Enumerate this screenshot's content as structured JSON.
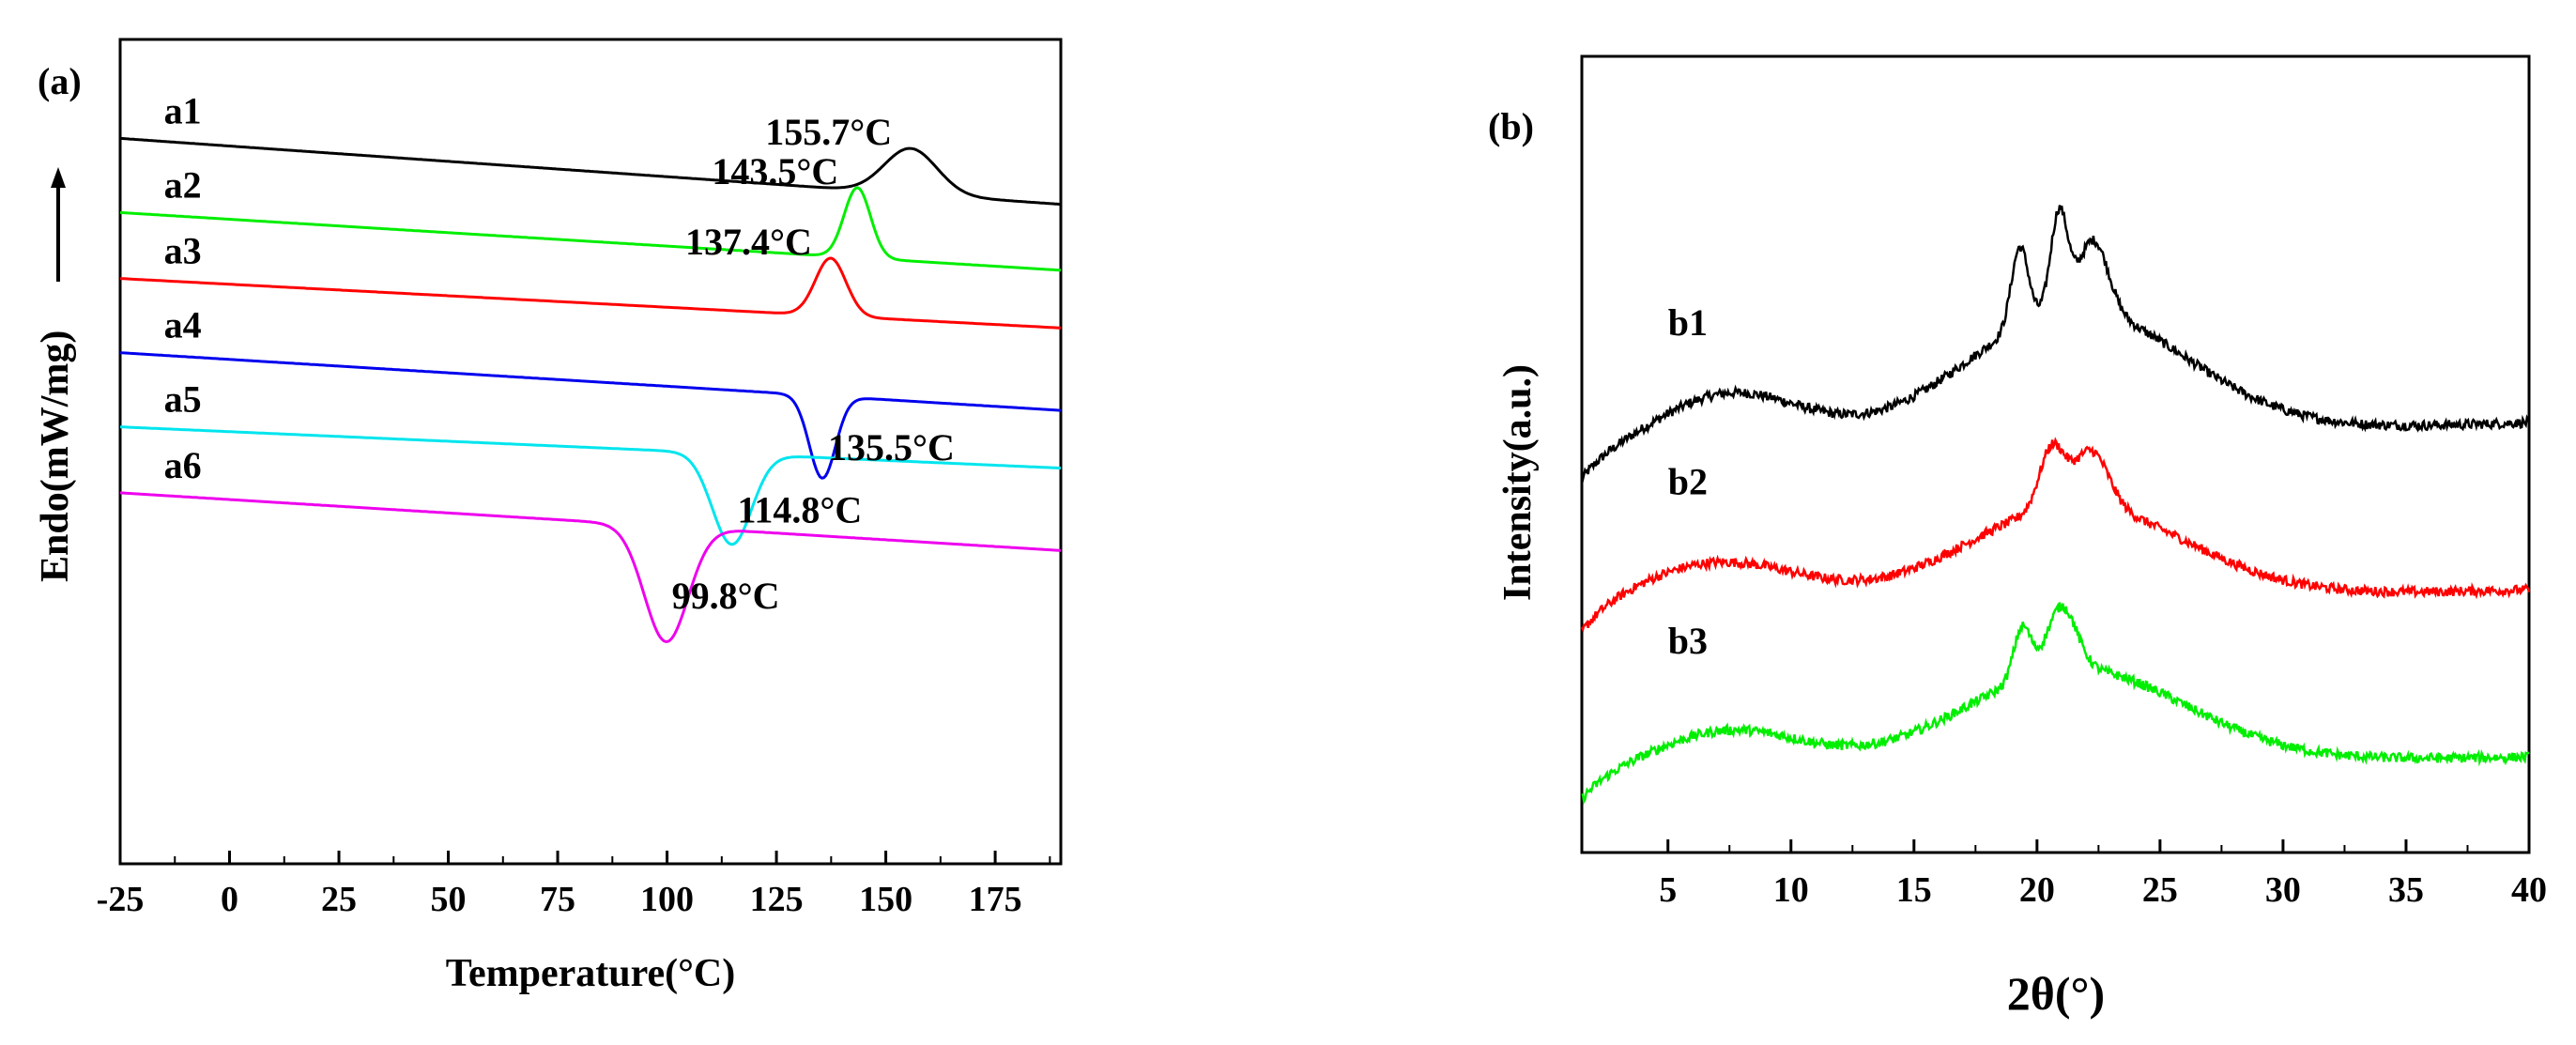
{
  "chart_data": [
    {
      "panel": "(a)",
      "type": "line",
      "title": "",
      "xlabel": "Temperature(°C)",
      "ylabel": "Endo(mW/mg)",
      "xlim": [
        -25,
        190
      ],
      "xticks": [
        "-25",
        "0",
        "25",
        "50",
        "75",
        "100",
        "125",
        "150",
        "175"
      ],
      "yticks_shown": false,
      "series": [
        {
          "name": "a1",
          "color": "#000000",
          "baseline_start": 0.88,
          "baseline_end": 0.8,
          "peak_type": "endo",
          "peak_temp": 155.7,
          "peak_height": 0.055,
          "peak_width": 6.0,
          "peak_label": "155.7°C"
        },
        {
          "name": "a2",
          "color": "#00ee00",
          "baseline_start": 0.79,
          "baseline_end": 0.72,
          "peak_type": "endo",
          "peak_temp": 143.5,
          "peak_height": 0.085,
          "peak_width": 3.0,
          "peak_label": "143.5°C"
        },
        {
          "name": "a3",
          "color": "#ff0000",
          "baseline_start": 0.71,
          "baseline_end": 0.65,
          "peak_type": "endo",
          "peak_temp": 137.4,
          "peak_height": 0.07,
          "peak_width": 3.5,
          "peak_label": "137.4°C"
        },
        {
          "name": "a4",
          "color": "#0000ee",
          "baseline_start": 0.62,
          "baseline_end": 0.55,
          "peak_type": "exo",
          "peak_temp": 135.5,
          "peak_height": 0.1,
          "peak_width": 3.0,
          "peak_label": "135.5°C"
        },
        {
          "name": "a5",
          "color": "#00e5ee",
          "baseline_start": 0.53,
          "baseline_end": 0.48,
          "peak_type": "exo",
          "peak_temp": 114.8,
          "peak_height": 0.11,
          "peak_width": 4.5,
          "peak_label": "114.8°C"
        },
        {
          "name": "a6",
          "color": "#ee00ee",
          "baseline_start": 0.45,
          "baseline_end": 0.38,
          "peak_type": "exo",
          "peak_temp": 99.8,
          "peak_height": 0.14,
          "peak_width": 5.0,
          "peak_label": "99.8°C"
        }
      ]
    },
    {
      "panel": "(b)",
      "type": "line",
      "title": "",
      "xlabel": "2θ(°)",
      "ylabel": "Intensity(a.u.)",
      "xlim": [
        1.5,
        40
      ],
      "xticks": [
        "5",
        "10",
        "15",
        "20",
        "25",
        "30",
        "35",
        "40"
      ],
      "yticks_shown": false,
      "series": [
        {
          "name": "b1",
          "color": "#000000",
          "offset": 0.5,
          "peaks": [
            {
              "x": 19.3,
              "h": 0.2,
              "w": 0.35
            },
            {
              "x": 20.9,
              "h": 0.25,
              "w": 0.35
            },
            {
              "x": 22.3,
              "h": 0.18,
              "w": 0.6
            }
          ],
          "amorphous": [
            {
              "x": 7.5,
              "h": 0.07,
              "w": 3.0
            },
            {
              "x": 21.5,
              "h": 0.16,
              "w": 4.5
            }
          ],
          "end_level": 0.54
        },
        {
          "name": "b2",
          "color": "#ff0000",
          "offset": 0.3,
          "peaks": [
            {
              "x": 20.6,
              "h": 0.15,
              "w": 0.5
            },
            {
              "x": 22.2,
              "h": 0.14,
              "w": 0.7
            }
          ],
          "amorphous": [
            {
              "x": 7.0,
              "h": 0.06,
              "w": 3.5
            },
            {
              "x": 21.5,
              "h": 0.12,
              "w": 4.5
            }
          ],
          "end_level": 0.33
        },
        {
          "name": "b3",
          "color": "#00ee00",
          "offset": 0.1,
          "peaks": [
            {
              "x": 19.4,
              "h": 0.13,
              "w": 0.35
            },
            {
              "x": 21.0,
              "h": 0.16,
              "w": 0.6
            }
          ],
          "amorphous": [
            {
              "x": 7.5,
              "h": 0.05,
              "w": 3.0
            },
            {
              "x": 21.5,
              "h": 0.12,
              "w": 4.5
            }
          ],
          "end_level": 0.12
        }
      ]
    }
  ]
}
